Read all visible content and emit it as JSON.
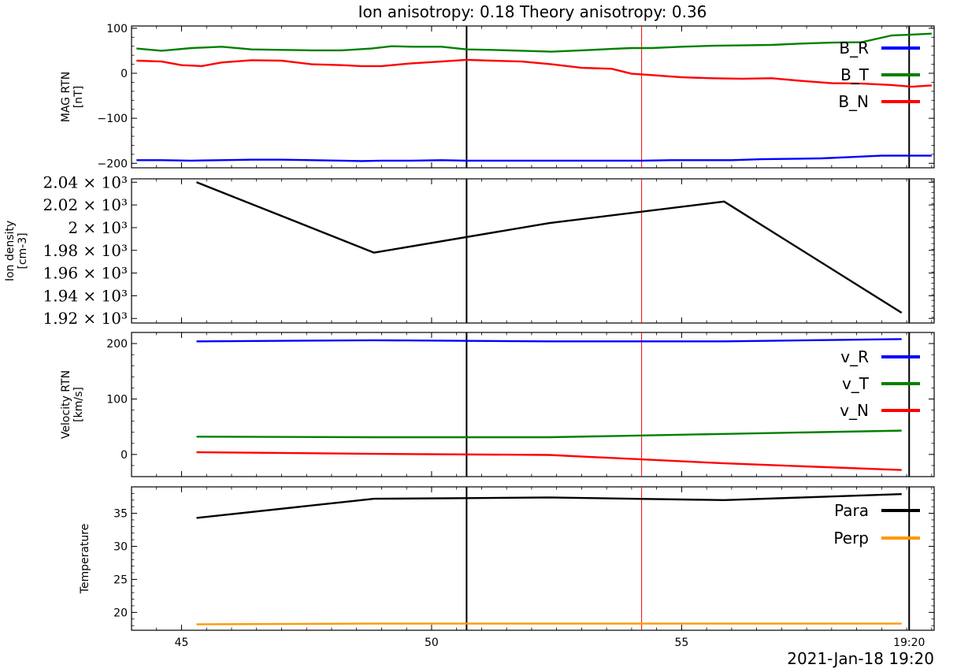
{
  "figure": {
    "title": "Ion anisotropy: 0.18 Theory anisotropy: 0.36",
    "time_label": "2021-Jan-18 19:20"
  },
  "colors": {
    "black": "#000000",
    "blue": "#0000ff",
    "green": "#008000",
    "red": "#ff0000",
    "orange": "#ff9900"
  },
  "chart_data": [
    {
      "type": "line",
      "panel": "mag",
      "ylabel": [
        "MAG RTN",
        "[nT]"
      ],
      "xlim": [
        44,
        60.05
      ],
      "ylim": [
        -210,
        105
      ],
      "yticks": [
        100,
        0,
        -100,
        -200
      ],
      "ytick_labels": [
        "100",
        "0",
        "−100",
        "−200"
      ],
      "legend_placement": "right",
      "series": [
        {
          "name": "B_R",
          "color": "#0000ff",
          "x": [
            44.1,
            44.6,
            45.2,
            45.8,
            46.4,
            47,
            47.6,
            48.2,
            48.6,
            49,
            49.6,
            50.2,
            50.7,
            51.2,
            51.8,
            52.4,
            53,
            53.6,
            54.2,
            54.8,
            55.4,
            56,
            56.6,
            57.2,
            57.8,
            58.4,
            59,
            59.6,
            60
          ],
          "y": [
            -193,
            -193,
            -194,
            -193,
            -192,
            -192,
            -193,
            -194,
            -195,
            -194,
            -194,
            -193,
            -194,
            -194,
            -194,
            -194,
            -194,
            -194,
            -194,
            -193,
            -193,
            -193,
            -191,
            -190,
            -189,
            -186,
            -183,
            -183,
            -183
          ]
        },
        {
          "name": "B_T",
          "color": "#008000",
          "x": [
            44.1,
            44.6,
            45.2,
            45.8,
            46.4,
            47,
            47.6,
            48.2,
            48.8,
            49.2,
            49.6,
            50.2,
            50.7,
            51.2,
            51.8,
            52.4,
            53,
            53.6,
            54,
            54.4,
            55,
            55.6,
            56.2,
            56.8,
            57.4,
            58,
            58.6,
            59.2,
            59.6,
            60
          ],
          "y": [
            55,
            50,
            56,
            59,
            53,
            52,
            51,
            51,
            55,
            60,
            59,
            59,
            53,
            52,
            50,
            48,
            51,
            54,
            56,
            56,
            59,
            61,
            62,
            63,
            66,
            68,
            69,
            84,
            86,
            88
          ]
        },
        {
          "name": "B_N",
          "color": "#ff0000",
          "x": [
            44.1,
            44.6,
            45,
            45.4,
            45.8,
            46.4,
            47,
            47.6,
            48.2,
            48.6,
            49,
            49.6,
            50.2,
            50.7,
            51.2,
            51.8,
            52.4,
            53,
            53.6,
            54,
            54.4,
            55,
            55.6,
            56.2,
            56.8,
            57.4,
            58,
            58.6,
            59.2,
            59.6,
            60
          ],
          "y": [
            28,
            26,
            18,
            16,
            24,
            29,
            28,
            20,
            18,
            16,
            16,
            22,
            26,
            30,
            28,
            26,
            20,
            12,
            10,
            -1,
            -4,
            -9,
            -11,
            -12,
            -11,
            -17,
            -22,
            -23,
            -26,
            -30,
            -27
          ]
        }
      ]
    },
    {
      "type": "line",
      "panel": "density",
      "ylabel": [
        "Ion density",
        "[cm-3]"
      ],
      "xlim": [
        44,
        60.05
      ],
      "ylim": [
        1916,
        2043
      ],
      "yticks": [
        1920,
        1940,
        1960,
        1980,
        2000,
        2020,
        2040
      ],
      "ytick_labels": [
        "1.92 × 10³",
        "1.94 × 10³",
        "1.96 × 10³",
        "1.98 × 10³",
        "2 × 10³",
        "2.02 × 10³",
        "2.04 × 10³"
      ],
      "series": [
        {
          "name": "",
          "color": "#000000",
          "x": [
            45.3,
            48.85,
            52.35,
            55.85,
            59.4
          ],
          "y": [
            2040,
            1978,
            2004,
            2023,
            1925
          ]
        }
      ]
    },
    {
      "type": "line",
      "panel": "velocity",
      "ylabel": [
        "Velocity RTN",
        "[km/s]"
      ],
      "xlim": [
        44,
        60.05
      ],
      "ylim": [
        -40,
        220
      ],
      "yticks": [
        0,
        100,
        200
      ],
      "ytick_labels": [
        "0",
        "100",
        "200"
      ],
      "legend_placement": "right",
      "series": [
        {
          "name": "v_R",
          "color": "#0000ff",
          "x": [
            45.3,
            48.85,
            52.35,
            55.85,
            59.4
          ],
          "y": [
            204,
            206,
            204,
            204,
            208
          ]
        },
        {
          "name": "v_T",
          "color": "#008000",
          "x": [
            45.3,
            48.85,
            52.35,
            55.85,
            59.4
          ],
          "y": [
            32,
            31,
            31,
            37,
            43
          ]
        },
        {
          "name": "v_N",
          "color": "#ff0000",
          "x": [
            45.3,
            48.85,
            52.35,
            55.85,
            59.4
          ],
          "y": [
            4,
            1,
            -1,
            -16,
            -28
          ]
        }
      ]
    },
    {
      "type": "line",
      "panel": "temperature",
      "ylabel": [
        "Temperature"
      ],
      "xlim": [
        44,
        60.05
      ],
      "ylim": [
        17.3,
        39
      ],
      "yticks": [
        20,
        25,
        30,
        35
      ],
      "ytick_labels": [
        "20",
        "25",
        "30",
        "35"
      ],
      "legend_placement": "upper right",
      "series": [
        {
          "name": "Para",
          "color": "#000000",
          "x": [
            45.3,
            48.85,
            50.7,
            52.35,
            54,
            55.85,
            59.4
          ],
          "y": [
            34.3,
            37.2,
            37.3,
            37.4,
            37.2,
            37.0,
            37.9
          ]
        },
        {
          "name": "Perp",
          "color": "#ff9900",
          "x": [
            45.3,
            48.85,
            52.35,
            55.85,
            59.4
          ],
          "y": [
            18.2,
            18.3,
            18.3,
            18.3,
            18.3
          ]
        }
      ]
    }
  ],
  "xaxis": {
    "xticks": [
      45,
      50,
      55,
      59.55
    ],
    "xtick_labels": [
      "45",
      "50",
      "55",
      "19:20"
    ]
  },
  "markers": {
    "black_lines_x": [
      50.7,
      59.55
    ],
    "red_line_x": 54.2
  }
}
